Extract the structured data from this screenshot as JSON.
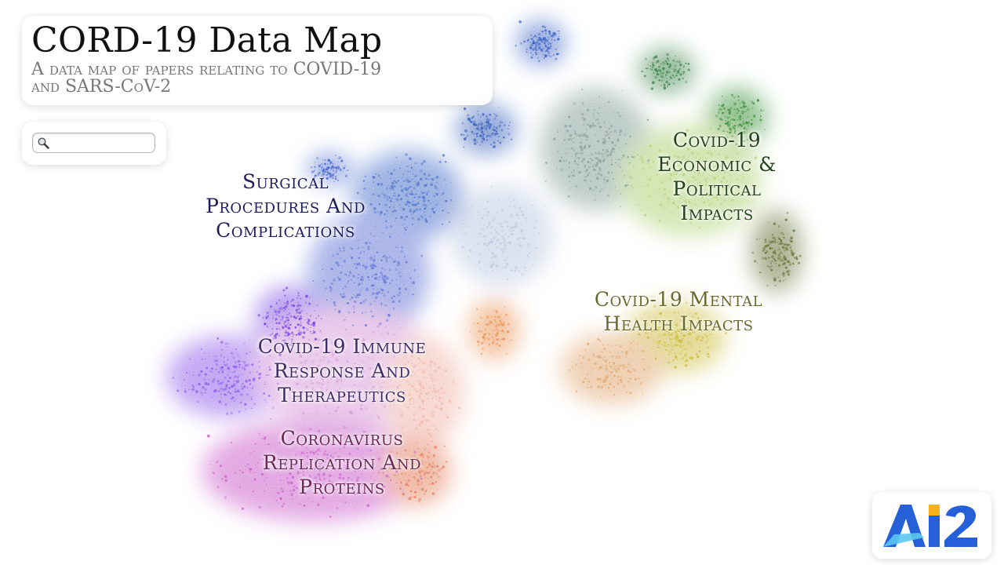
{
  "header": {
    "title": "CORD-19 Data Map",
    "subtitle_lines": [
      "A data map of papers relating to COVID-19",
      "and SARS-CoV-2"
    ]
  },
  "search": {
    "value": "",
    "placeholder": "",
    "icon": "magnifier-icon"
  },
  "regions": [
    {
      "id": "surgical",
      "lines": [
        "Surgical",
        "Procedures And",
        "Complications"
      ],
      "color": "#1c1c5e"
    },
    {
      "id": "economic",
      "lines": [
        "Covid-19",
        "Economic &",
        "Political",
        "Impacts"
      ],
      "color": "#24421c"
    },
    {
      "id": "mental",
      "lines": [
        "Covid-19 Mental",
        "Health Impacts"
      ],
      "color": "#6b6a2e"
    },
    {
      "id": "immune",
      "lines": [
        "Covid-19 Immune",
        "Response And",
        "Therapeutics"
      ],
      "color": "#3e2d66"
    },
    {
      "id": "replication",
      "lines": [
        "Coronavirus",
        "Replication And",
        "Proteins"
      ],
      "color": "#6a2a55"
    }
  ],
  "logo": {
    "text": "AI2",
    "color": "#2560d8",
    "accent": "#f7b21b"
  }
}
